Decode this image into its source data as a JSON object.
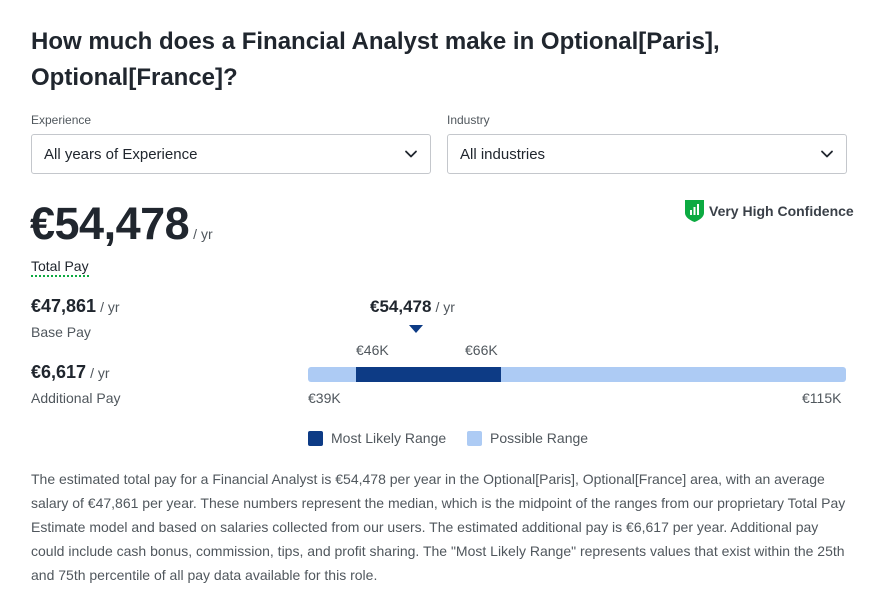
{
  "title": "How much does a Financial Analyst make in Optional[Paris], Optional[France]?",
  "filters": {
    "experience": {
      "label": "Experience",
      "value": "All years of Experience"
    },
    "industry": {
      "label": "Industry",
      "value": "All industries"
    }
  },
  "confidence": {
    "label": "Very High Confidence",
    "icon": "shield-chart-icon",
    "color": "#0caa41"
  },
  "total": {
    "value": "€54,478",
    "unit": "/ yr",
    "label": "Total Pay"
  },
  "base": {
    "value": "€47,861",
    "unit": "/ yr",
    "label": "Base Pay"
  },
  "additional": {
    "value": "€6,617",
    "unit": "/ yr",
    "label": "Additional Pay"
  },
  "range": {
    "median_label": "€54,478",
    "median_unit": "/ yr",
    "likely_low_label": "€46K",
    "likely_high_label": "€66K",
    "possible_low_label": "€39K",
    "possible_high_label": "€115K",
    "colors": {
      "likely": "#0d3b85",
      "possible": "#adcbf4"
    }
  },
  "legend": {
    "likely": "Most Likely Range",
    "possible": "Possible Range"
  },
  "description": "The estimated total pay for a Financial Analyst is €54,478 per year in the Optional[Paris], Optional[France] area, with an average salary of €47,861 per year. These numbers represent the median, which is the midpoint of the ranges from our proprietary Total Pay Estimate model and based on salaries collected from our users. The estimated additional pay is €6,617 per year. Additional pay could include cash bonus, commission, tips, and profit sharing. The \"Most Likely Range\" represents values that exist within the 25th and 75th percentile of all pay data available for this role."
}
